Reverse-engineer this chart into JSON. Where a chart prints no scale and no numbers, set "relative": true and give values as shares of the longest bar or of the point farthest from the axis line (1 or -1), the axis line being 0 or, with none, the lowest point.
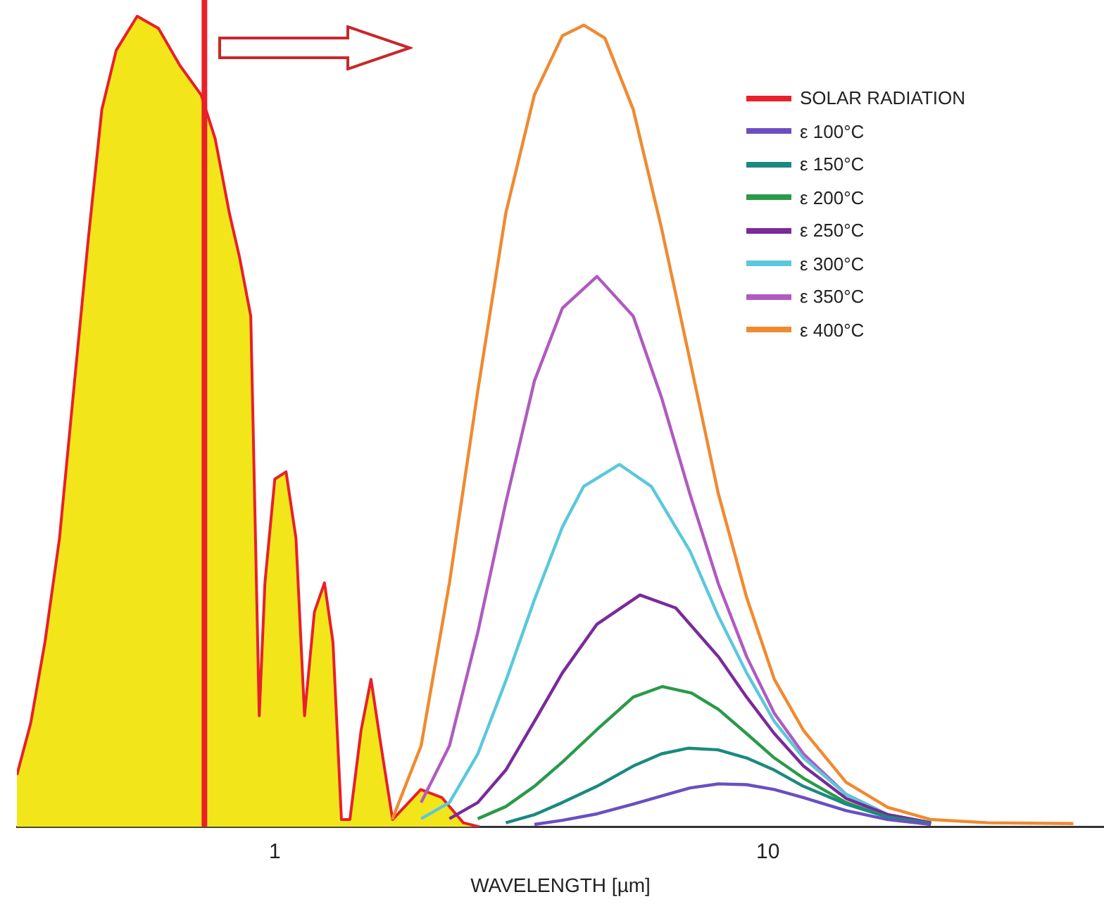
{
  "chart_data": {
    "type": "line",
    "xlabel": "WAVELENGTH [µm]",
    "relative": true,
    "log": "x",
    "xlim": [
      0.3,
      48
    ],
    "xticks": [
      1,
      10
    ],
    "legend": "top right",
    "grid": false,
    "ref_lines": [
      {
        "axis": "x",
        "value": 0.72,
        "color": "#e8202a"
      }
    ],
    "series": [
      {
        "name": "SOLAR RADIATION",
        "type": "area",
        "color": "#e8202a",
        "x": [
          0.3,
          0.32,
          0.342,
          0.366,
          0.391,
          0.418,
          0.446,
          0.477,
          0.526,
          0.581,
          0.641,
          0.709,
          0.757,
          0.809,
          0.848,
          0.894,
          0.93,
          0.955,
          1.0,
          1.054,
          1.104,
          1.149,
          1.203,
          1.261,
          1.312,
          1.365,
          1.42,
          1.496,
          1.567,
          1.642,
          1.733,
          1.977,
          2.183,
          2.411,
          2.6
        ],
        "values": [
          0.064,
          0.128,
          0.228,
          0.356,
          0.538,
          0.721,
          0.885,
          0.958,
          1,
          0.985,
          0.94,
          0.903,
          0.849,
          0.757,
          0.703,
          0.63,
          0.137,
          0.301,
          0.429,
          0.438,
          0.356,
          0.137,
          0.265,
          0.301,
          0.228,
          0.009,
          0.009,
          0.119,
          0.182,
          0.1,
          0.009,
          0.046,
          0.036,
          0.005,
          0
        ]
      },
      {
        "name": "ε 100°C",
        "color": "#6a4fc0",
        "x": [
          3.36,
          3.83,
          4.5,
          5.33,
          6.08,
          6.95,
          7.93,
          9.05,
          10.3,
          11.8,
          14.4,
          17.5,
          21.4
        ],
        "values": [
          0.003,
          0.008,
          0.016,
          0.028,
          0.038,
          0.048,
          0.053,
          0.052,
          0.046,
          0.036,
          0.02,
          0.009,
          0.003
        ]
      },
      {
        "name": "ε 150°C",
        "color": "#1a8a80",
        "x": [
          2.94,
          3.36,
          3.83,
          4.5,
          5.33,
          6.08,
          6.9,
          7.93,
          9.05,
          10.3,
          11.8,
          14.4,
          17.5,
          21.4
        ],
        "values": [
          0.005,
          0.015,
          0.03,
          0.05,
          0.075,
          0.09,
          0.097,
          0.095,
          0.085,
          0.07,
          0.05,
          0.028,
          0.012,
          0.004
        ]
      },
      {
        "name": "ε 200°C",
        "color": "#2a9a4a",
        "x": [
          2.58,
          2.94,
          3.36,
          3.83,
          4.5,
          5.33,
          6.1,
          7.0,
          7.93,
          9.05,
          10.3,
          11.8,
          14.4,
          17.5,
          21.4
        ],
        "values": [
          0.01,
          0.025,
          0.05,
          0.08,
          0.12,
          0.16,
          0.173,
          0.165,
          0.145,
          0.115,
          0.085,
          0.06,
          0.03,
          0.012,
          0.004
        ]
      },
      {
        "name": "ε 250°C",
        "color": "#7a2a9a",
        "x": [
          2.26,
          2.58,
          2.94,
          3.36,
          3.83,
          4.5,
          5.5,
          6.5,
          7.93,
          9.05,
          10.3,
          11.8,
          14.4,
          17.5,
          21.4
        ],
        "values": [
          0.01,
          0.03,
          0.07,
          0.13,
          0.19,
          0.25,
          0.286,
          0.27,
          0.21,
          0.16,
          0.115,
          0.075,
          0.035,
          0.015,
          0.005
        ]
      },
      {
        "name": "ε 300°C",
        "color": "#5ac8dc",
        "x": [
          1.98,
          2.26,
          2.58,
          2.94,
          3.36,
          3.83,
          4.23,
          5.0,
          5.8,
          6.95,
          7.93,
          9.05,
          10.3,
          11.8,
          14.4,
          17.5,
          21.4
        ],
        "values": [
          0.01,
          0.03,
          0.09,
          0.18,
          0.28,
          0.37,
          0.42,
          0.447,
          0.42,
          0.34,
          0.26,
          0.19,
          0.13,
          0.085,
          0.04,
          0.015,
          0.005
        ]
      },
      {
        "name": "ε 350°C",
        "color": "#b05ac0",
        "x": [
          1.98,
          2.26,
          2.58,
          2.94,
          3.36,
          3.83,
          4.5,
          5.33,
          6.08,
          6.95,
          7.93,
          9.05,
          10.3,
          11.8,
          14.4,
          17.5,
          21.4
        ],
        "values": [
          0.03,
          0.1,
          0.24,
          0.4,
          0.55,
          0.64,
          0.679,
          0.63,
          0.53,
          0.41,
          0.3,
          0.21,
          0.14,
          0.09,
          0.04,
          0.015,
          0.005
        ]
      },
      {
        "name": "ε 400°C",
        "color": "#f08a30",
        "x": [
          1.73,
          1.98,
          2.26,
          2.58,
          2.94,
          3.36,
          3.83,
          4.23,
          4.67,
          5.33,
          6.08,
          6.95,
          7.93,
          9.05,
          10.3,
          11.8,
          14.4,
          17.5,
          21.4,
          27.9,
          41.6
        ],
        "values": [
          0.009,
          0.1,
          0.301,
          0.538,
          0.757,
          0.903,
          0.976,
          0.989,
          0.973,
          0.885,
          0.739,
          0.575,
          0.411,
          0.283,
          0.182,
          0.119,
          0.055,
          0.024,
          0.009,
          0.005,
          0.004
        ]
      }
    ]
  }
}
